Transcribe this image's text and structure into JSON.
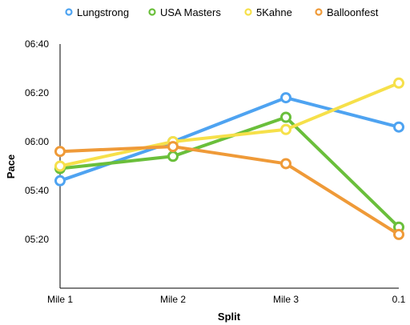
{
  "chart_data": {
    "type": "line",
    "title": "",
    "xlabel": "Split",
    "ylabel": "Pace",
    "categories": [
      "Mile 1",
      "Mile 2",
      "Mile 3",
      "0.1"
    ],
    "y_unit": "minutes:seconds",
    "ylim": [
      "05:00",
      "06:40"
    ],
    "yticks": [
      "05:20",
      "05:40",
      "06:00",
      "06:20",
      "06:40"
    ],
    "grid": false,
    "legend_position": "top",
    "series": [
      {
        "name": "Lungstrong",
        "color": "#4ea3f1",
        "values": [
          "05:44",
          "06:00",
          "06:18",
          "06:06"
        ]
      },
      {
        "name": "USA Masters",
        "color": "#6abf3b",
        "values": [
          "05:49",
          "05:54",
          "06:10",
          "05:25"
        ]
      },
      {
        "name": "5Kahne",
        "color": "#f6e04a",
        "values": [
          "05:50",
          "06:00",
          "06:05",
          "06:24"
        ]
      },
      {
        "name": "Balloonfest",
        "color": "#ef9a38",
        "values": [
          "05:56",
          "05:58",
          "05:51",
          "05:22"
        ]
      }
    ]
  }
}
